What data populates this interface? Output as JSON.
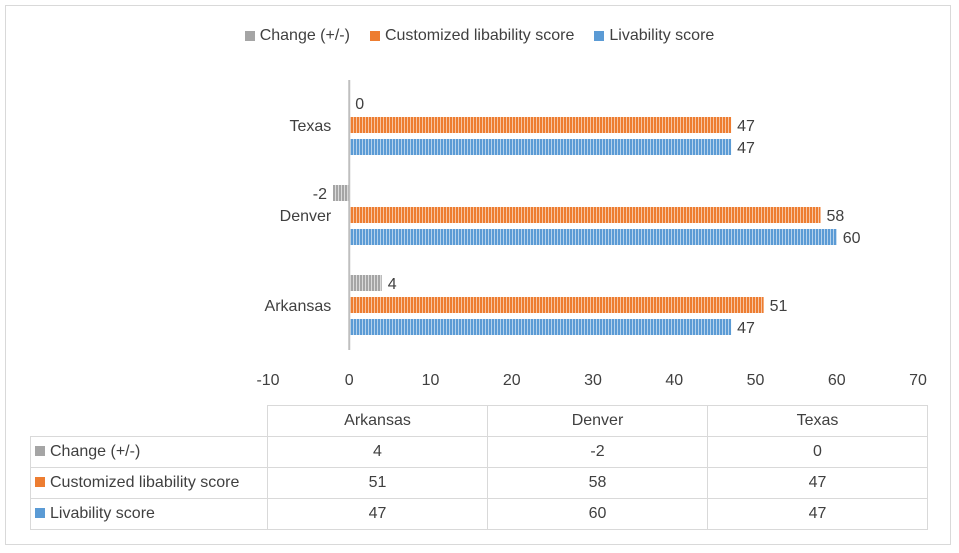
{
  "chart_data": {
    "type": "bar",
    "orientation": "horizontal",
    "categories": [
      "Arkansas",
      "Denver",
      "Texas"
    ],
    "series": [
      {
        "name": "Change (+/-)",
        "values": [
          4,
          -2,
          0
        ],
        "color": "#a5a5a5"
      },
      {
        "name": "Customized libability score",
        "values": [
          51,
          58,
          47
        ],
        "color": "#ed7d31"
      },
      {
        "name": "Livability score",
        "values": [
          47,
          60,
          47
        ],
        "color": "#5b9bd5"
      }
    ],
    "legend_order": [
      "Change (+/-)",
      "Customized libability score",
      "Livability score"
    ],
    "legend_position": "top",
    "xlim": [
      -10,
      70
    ],
    "xticks": [
      "-10",
      "0",
      "10",
      "20",
      "30",
      "40",
      "50",
      "60",
      "70"
    ],
    "data_table": true,
    "grid": false
  }
}
